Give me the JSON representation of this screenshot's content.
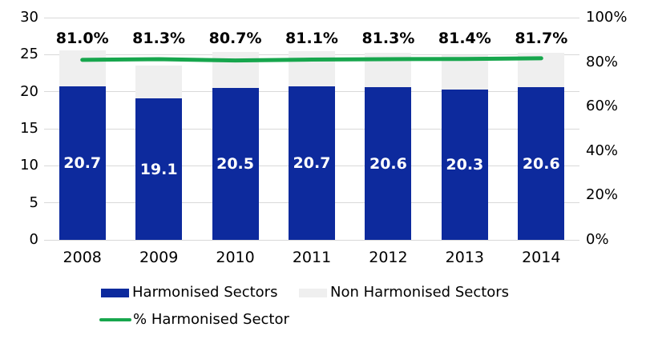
{
  "colors": {
    "harmonised_bar": "#0D2A9D",
    "non_harmonised_bar": "#EFEFEF",
    "percent_line": "#17A64D",
    "gridline": "#D9D9D9",
    "bar_value_text": "#FFFFFF",
    "axis_text": "#000000",
    "background": "#FFFFFF"
  },
  "chart_data": {
    "type": "bar",
    "subtype": "stacked-bars-with-percentage-line",
    "title": "",
    "categories": [
      "2008",
      "2009",
      "2010",
      "2011",
      "2012",
      "2013",
      "2014"
    ],
    "series": [
      {
        "name": "Harmonised Sectors",
        "type": "bar",
        "axis": "left",
        "color": "#0D2A9D",
        "values": [
          20.7,
          19.1,
          20.5,
          20.7,
          20.6,
          20.3,
          20.6
        ]
      },
      {
        "name": "Non Harmonised Sectors",
        "type": "bar",
        "axis": "left",
        "color": "#EFEFEF",
        "estimated_from_pixels": true,
        "values": [
          4.9,
          4.4,
          4.9,
          4.8,
          4.7,
          4.6,
          4.6
        ]
      },
      {
        "name": "% Harmonised Sector",
        "type": "line",
        "axis": "right",
        "color": "#17A64D",
        "values": [
          81.0,
          81.3,
          80.7,
          81.1,
          81.3,
          81.4,
          81.7
        ]
      }
    ],
    "bar_value_labels": [
      "20.7",
      "19.1",
      "20.5",
      "20.7",
      "20.6",
      "20.3",
      "20.6"
    ],
    "percent_labels": [
      "81.0%",
      "81.3%",
      "80.7%",
      "81.1%",
      "81.3%",
      "81.4%",
      "81.7%"
    ],
    "left_axis": {
      "min": 0,
      "max": 30,
      "ticks_top_to_bottom": [
        "30",
        "25",
        "20",
        "15",
        "10",
        "5",
        "0"
      ]
    },
    "right_axis": {
      "min": 0,
      "max": 100,
      "ticks_top_to_bottom": [
        "100%",
        "80%",
        "60%",
        "40%",
        "20%",
        "0%"
      ]
    },
    "grid": true,
    "legend_position": "bottom",
    "legend": [
      {
        "label": "Harmonised Sectors",
        "swatch": "bar",
        "color": "#0D2A9D"
      },
      {
        "label": "Non Harmonised Sectors",
        "swatch": "bar",
        "color": "#EFEFEF"
      },
      {
        "label": "% Harmonised Sector",
        "swatch": "line",
        "color": "#17A64D"
      }
    ]
  }
}
